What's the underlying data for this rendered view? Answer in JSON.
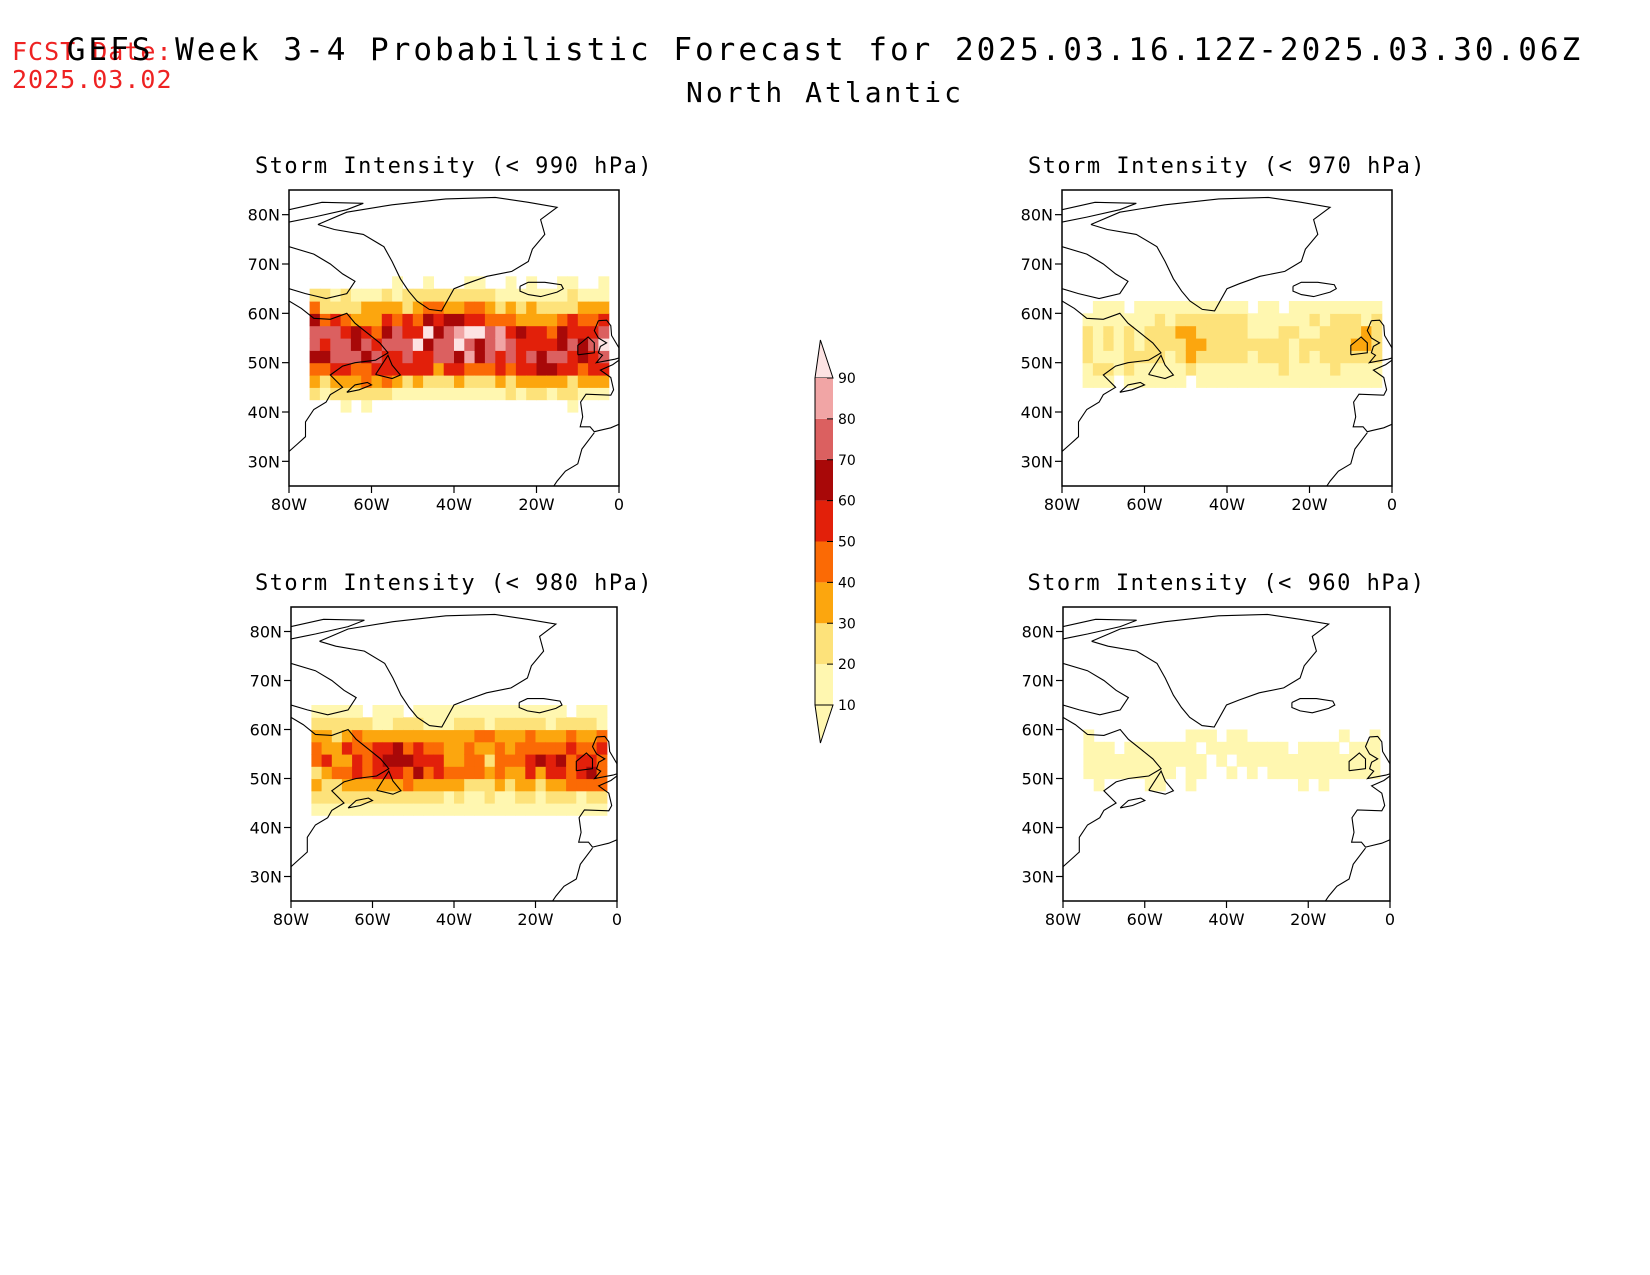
{
  "header": {
    "fcst_label": "FCST Date:",
    "fcst_date": "2025.03.02",
    "title": "GEFS Week 3-4 Probabilistic Forecast for 2025.03.16.12Z-2025.03.30.06Z",
    "subtitle": "North Atlantic"
  },
  "axes": {
    "lat_labels": [
      "80N",
      "70N",
      "60N",
      "50N",
      "40N",
      "30N"
    ],
    "lat_values": [
      80,
      70,
      60,
      50,
      40,
      30
    ],
    "lon_labels": [
      "80W",
      "60W",
      "40W",
      "20W",
      "0"
    ],
    "lon_values": [
      -80,
      -60,
      -40,
      -20,
      0
    ],
    "lon_range": [
      -80,
      0
    ],
    "lat_range": [
      25,
      85
    ]
  },
  "colorbar": {
    "levels": [
      "10",
      "20",
      "30",
      "40",
      "50",
      "60",
      "70",
      "80",
      "90"
    ],
    "colors": [
      "#fff7b0",
      "#fde27a",
      "#fca60e",
      "#fb6a05",
      "#e2200a",
      "#a80808",
      "#db6060",
      "#f1a5a5",
      "#fde3e3"
    ]
  },
  "panels": [
    {
      "id": "p990",
      "title": "Storm Intensity (< 990 hPa)",
      "intensity": 0.92
    },
    {
      "id": "p970",
      "title": "Storm Intensity (< 970 hPa)",
      "intensity": 0.32
    },
    {
      "id": "p980",
      "title": "Storm Intensity (< 980 hPa)",
      "intensity": 0.62
    },
    {
      "id": "p960",
      "title": "Storm Intensity (< 960 hPa)",
      "intensity": 0.16
    }
  ]
}
